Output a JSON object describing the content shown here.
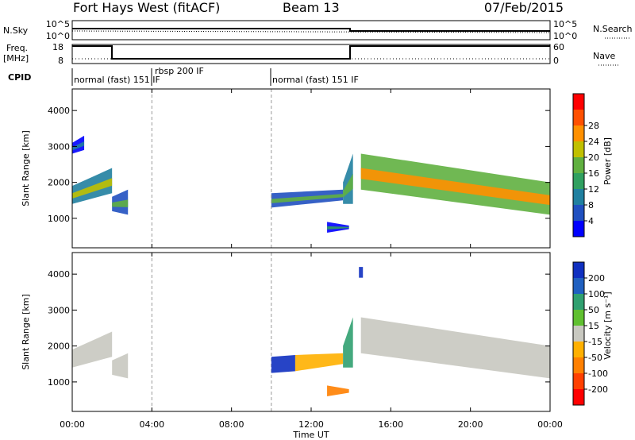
{
  "header": {
    "station": "Fort Hays West (fitACF)",
    "beam": "Beam 13",
    "date": "07/Feb/2015"
  },
  "noise_panel": {
    "left_label": "N.Sky",
    "right_label": "N.Search",
    "left_ticks": [
      "10^5",
      "10^0"
    ],
    "right_ticks": [
      "10^5",
      "10^0"
    ]
  },
  "freq_panel": {
    "left_label_1": "Freq.",
    "left_label_2": "[MHz]",
    "right_label": "Nave",
    "left_ticks": [
      "18",
      "8"
    ],
    "right_ticks": [
      "60",
      "0"
    ]
  },
  "cpid_panel": {
    "label": "CPID",
    "segments": [
      {
        "text": "normal (fast) 151 IF",
        "start_hour": 0,
        "end_hour": 4
      },
      {
        "text": "rbsp 200 IF",
        "start_hour": 4,
        "end_hour": 10
      },
      {
        "text": "normal (fast) 151 IF",
        "start_hour": 10,
        "end_hour": 24
      }
    ]
  },
  "x_axis": {
    "label": "Time UT",
    "ticks": [
      "00:00",
      "04:00",
      "08:00",
      "12:00",
      "16:00",
      "20:00",
      "00:00"
    ],
    "range_hours": [
      0,
      24
    ]
  },
  "y_axis": {
    "label": "Slant Range [km]",
    "ticks": [
      "1000",
      "2000",
      "3000",
      "4000"
    ],
    "range_km": [
      180,
      4600
    ]
  },
  "power_colorbar": {
    "label": "Power [dB]",
    "ticks": [
      "4",
      "8",
      "12",
      "16",
      "20",
      "24",
      "28"
    ],
    "colors": [
      "#0000ff",
      "#2050c0",
      "#2080a0",
      "#30a060",
      "#60b040",
      "#c0c000",
      "#ff9000",
      "#ff5000",
      "#ff0000"
    ]
  },
  "velocity_colorbar": {
    "label": "Velocity [m s⁻¹]",
    "ticks": [
      "200",
      "100",
      "50",
      "15",
      "-15",
      "-50",
      "-100",
      "-200"
    ],
    "colors": [
      "#1030c0",
      "#2060c0",
      "#30a070",
      "#60c030",
      "#c8c8c0",
      "#ffb000",
      "#ff8000",
      "#ff4000",
      "#ff0000"
    ]
  },
  "chart_data": {
    "type": "heatmap",
    "title": "Fort Hays West (fitACF)",
    "xlabel": "Time UT",
    "ylabel": "Slant Range [km]",
    "xlim_hours": [
      0,
      24
    ],
    "ylim_km": [
      180,
      4600
    ],
    "mode_changes_hours": [
      2,
      14
    ],
    "dashed_lines_hours": [
      4,
      10
    ],
    "power_regions": [
      {
        "t0": 0.0,
        "t1": 2.0,
        "r_lo": [
          1400,
          1700
        ],
        "r_hi": [
          1900,
          2400
        ],
        "core_db": 18
      },
      {
        "t0": 0.0,
        "t1": 0.6,
        "r_lo": [
          2800,
          2900
        ],
        "r_hi": [
          3100,
          3300
        ],
        "core_db": 8
      },
      {
        "t0": 2.0,
        "t1": 2.8,
        "r_lo": [
          1200,
          1100
        ],
        "r_hi": [
          1600,
          1800
        ],
        "core_db": 14
      },
      {
        "t0": 10.0,
        "t1": 13.6,
        "r_lo": [
          1300,
          1500
        ],
        "r_hi": [
          1700,
          1800
        ],
        "core_db": 14
      },
      {
        "t0": 12.8,
        "t1": 13.9,
        "r_lo": [
          600,
          700
        ],
        "r_hi": [
          900,
          800
        ],
        "core_db": 10
      },
      {
        "t0": 13.6,
        "t1": 14.1,
        "r_lo": [
          1400,
          1400
        ],
        "r_hi": [
          2000,
          2800
        ],
        "core_db": 16
      },
      {
        "t0": 14.5,
        "t1": 24.0,
        "r_lo": [
          1800,
          1100
        ],
        "r_hi": [
          2800,
          2000
        ],
        "core_db": 24
      }
    ],
    "velocity_regions": [
      {
        "t0": 0.0,
        "t1": 2.0,
        "r_lo": [
          1400,
          1700
        ],
        "r_hi": [
          1900,
          2400
        ],
        "vel": 0
      },
      {
        "t0": 2.0,
        "t1": 2.8,
        "r_lo": [
          1200,
          1100
        ],
        "r_hi": [
          1600,
          1800
        ],
        "vel": 0
      },
      {
        "t0": 10.0,
        "t1": 11.2,
        "r_lo": [
          1250,
          1300
        ],
        "r_hi": [
          1700,
          1750
        ],
        "vel": 150
      },
      {
        "t0": 11.2,
        "t1": 13.6,
        "r_lo": [
          1300,
          1500
        ],
        "r_hi": [
          1750,
          1800
        ],
        "vel": -40
      },
      {
        "t0": 12.8,
        "t1": 13.9,
        "r_lo": [
          600,
          700
        ],
        "r_hi": [
          900,
          800
        ],
        "vel": -60
      },
      {
        "t0": 13.6,
        "t1": 14.1,
        "r_lo": [
          1400,
          1400
        ],
        "r_hi": [
          2000,
          2800
        ],
        "vel": 60
      },
      {
        "t0": 14.4,
        "t1": 14.6,
        "r_lo": [
          3900,
          3900
        ],
        "r_hi": [
          4200,
          4200
        ],
        "vel": 200
      },
      {
        "t0": 14.5,
        "t1": 24.0,
        "r_lo": [
          1800,
          1100
        ],
        "r_hi": [
          2800,
          2000
        ],
        "vel": 0
      }
    ]
  }
}
